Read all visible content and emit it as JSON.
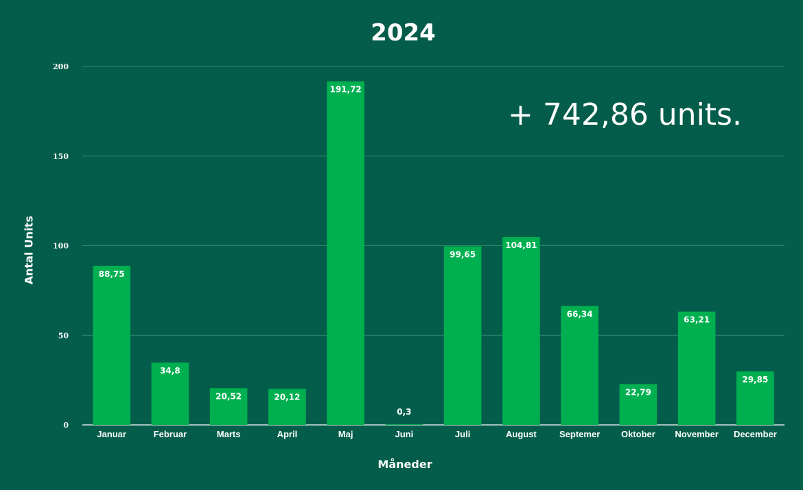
{
  "chart_data": {
    "type": "bar",
    "title": "2024",
    "annotation": "+ 742,86 units.",
    "xlabel": "Måneder",
    "ylabel": "Antal Units",
    "ylim": [
      0,
      200
    ],
    "yticks": [
      0,
      50,
      100,
      150,
      200
    ],
    "grid": true,
    "categories": [
      "Januar",
      "Februar",
      "Marts",
      "April",
      "Maj",
      "Juni",
      "Juli",
      "August",
      "Septemer",
      "Oktober",
      "November",
      "December"
    ],
    "values": [
      88.75,
      34.8,
      20.52,
      20.12,
      191.72,
      0.3,
      99.65,
      104.81,
      66.34,
      22.79,
      63.21,
      29.85
    ],
    "data_labels": [
      "88,75",
      "34,8",
      "20,52",
      "20,12",
      "191,72",
      "0,3",
      "99,65",
      "104,81",
      "66,34",
      "22,79",
      "63,21",
      "29,85"
    ],
    "colors": {
      "background": "#035d4a",
      "bar": "#00b050",
      "gridline": "#2f8a6c",
      "text": "#ffffff"
    }
  }
}
